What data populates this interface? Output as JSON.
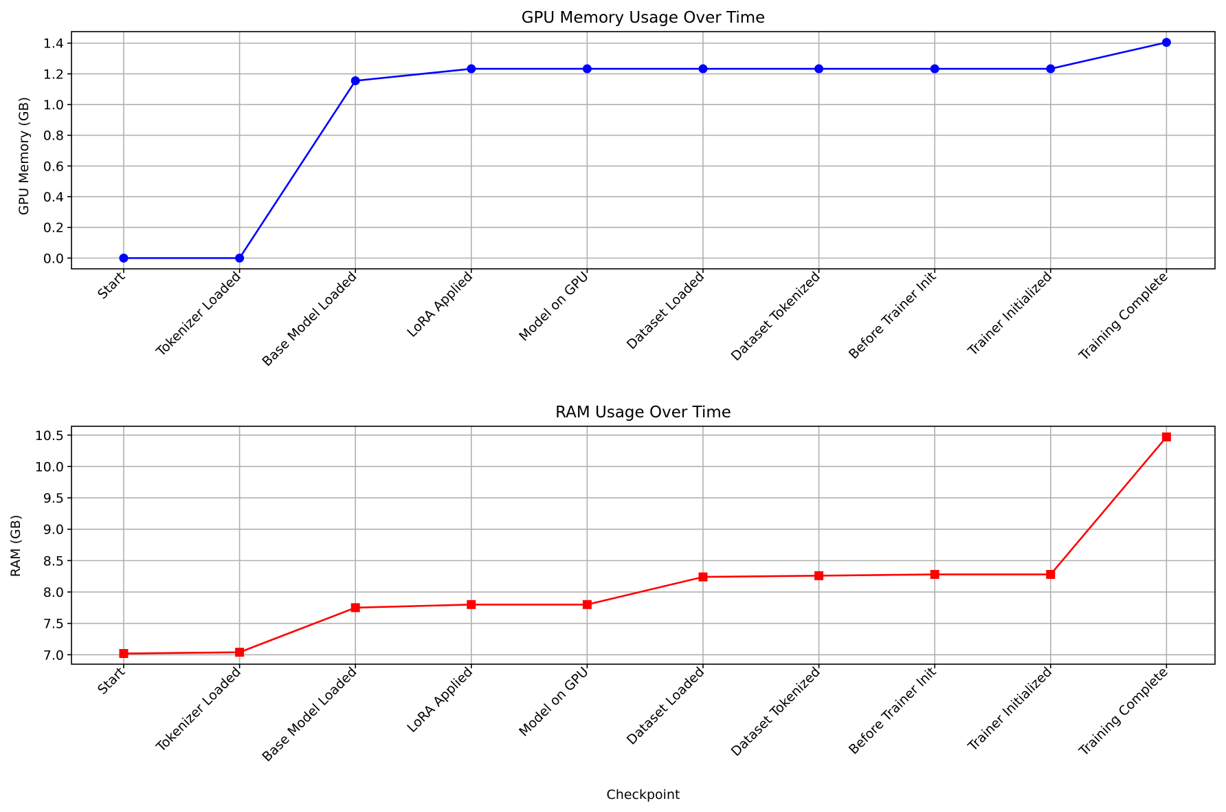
{
  "chart_data": [
    {
      "type": "line",
      "title": "GPU Memory Usage Over Time",
      "xlabel": "",
      "ylabel": "GPU Memory (GB)",
      "categories": [
        "Start",
        "Tokenizer Loaded",
        "Base Model Loaded",
        "LoRA Applied",
        "Model on GPU",
        "Dataset Loaded",
        "Dataset Tokenized",
        "Before Trainer Init",
        "Trainer Initialized",
        "Training Complete"
      ],
      "series": [
        {
          "values": [
            0.0,
            0.0,
            1.155,
            1.233,
            1.233,
            1.233,
            1.233,
            1.233,
            1.233,
            1.405
          ],
          "color": "#0000ff",
          "marker": "circle"
        }
      ],
      "ylim": [
        -0.07,
        1.475
      ],
      "yticks": [
        0.0,
        0.2,
        0.4,
        0.6,
        0.8,
        1.0,
        1.2,
        1.4
      ],
      "ytick_labels": [
        "0.0",
        "0.2",
        "0.4",
        "0.6",
        "0.8",
        "1.0",
        "1.2",
        "1.4"
      ],
      "grid": true
    },
    {
      "type": "line",
      "title": "RAM Usage Over Time",
      "xlabel": "Checkpoint",
      "ylabel": "RAM (GB)",
      "categories": [
        "Start",
        "Tokenizer Loaded",
        "Base Model Loaded",
        "LoRA Applied",
        "Model on GPU",
        "Dataset Loaded",
        "Dataset Tokenized",
        "Before Trainer Init",
        "Trainer Initialized",
        "Training Complete"
      ],
      "series": [
        {
          "values": [
            7.02,
            7.04,
            7.75,
            7.8,
            7.8,
            8.24,
            8.26,
            8.28,
            8.28,
            10.47
          ],
          "color": "#ff0000",
          "marker": "square"
        }
      ],
      "ylim": [
        6.85,
        10.64
      ],
      "yticks": [
        7.0,
        7.5,
        8.0,
        8.5,
        9.0,
        9.5,
        10.0,
        10.5
      ],
      "ytick_labels": [
        "7.0",
        "7.5",
        "8.0",
        "8.5",
        "9.0",
        "9.5",
        "10.0",
        "10.5"
      ],
      "grid": true
    }
  ]
}
